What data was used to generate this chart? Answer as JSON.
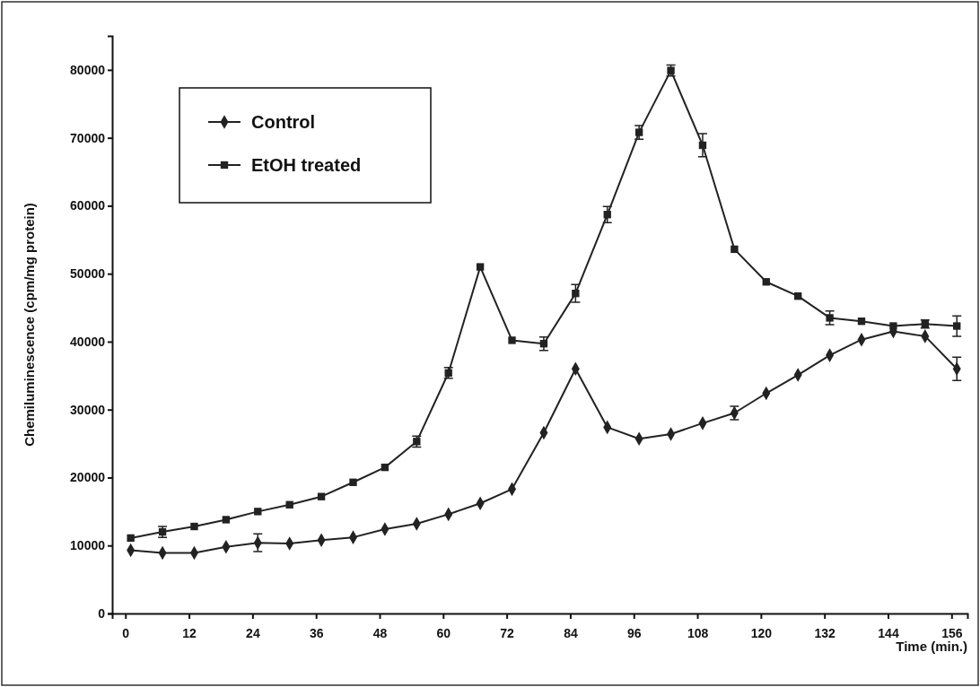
{
  "chart_data": {
    "type": "line",
    "xlabel": "Time (min.)",
    "ylabel": "Chemiluminescence (cpm/mg protein)",
    "x": [
      1,
      7,
      13,
      19,
      25,
      31,
      37,
      43,
      49,
      55,
      61,
      67,
      73,
      79,
      85,
      91,
      97,
      103,
      109,
      115,
      121,
      127,
      133,
      139,
      145,
      151,
      157
    ],
    "xlim": [
      -2.5,
      159
    ],
    "xticks": [
      0,
      12,
      24,
      36,
      48,
      60,
      72,
      84,
      96,
      108,
      120,
      132,
      144,
      156
    ],
    "ylim": [
      0,
      85000
    ],
    "yticks": [
      0,
      10000,
      20000,
      30000,
      40000,
      50000,
      60000,
      70000,
      80000
    ],
    "legend": "top left",
    "line_style": "solid",
    "series": [
      {
        "name": "Control",
        "color": "#222222",
        "marker": "diamond",
        "values": [
          9300,
          8900,
          8900,
          9800,
          10400,
          10300,
          10800,
          11200,
          12400,
          13200,
          14600,
          16200,
          18300,
          26600,
          36000,
          27400,
          25700,
          26400,
          28000,
          29500,
          32400,
          35100,
          38000,
          40300,
          41500,
          40800,
          36000
        ],
        "errors": [
          null,
          null,
          null,
          null,
          1300,
          null,
          null,
          null,
          null,
          null,
          null,
          null,
          null,
          null,
          null,
          null,
          null,
          null,
          null,
          1000,
          null,
          null,
          null,
          null,
          null,
          null,
          1700
        ]
      },
      {
        "name": "EtOH treated",
        "color": "#222222",
        "marker": "square",
        "values": [
          11100,
          12000,
          12800,
          13800,
          15000,
          16000,
          17200,
          19300,
          21500,
          25300,
          35400,
          51000,
          40200,
          39700,
          47100,
          58700,
          70800,
          79900,
          68900,
          53600,
          48800,
          46700,
          43500,
          43000,
          42300,
          42600,
          42300
        ],
        "errors": [
          null,
          800,
          null,
          null,
          null,
          null,
          null,
          null,
          null,
          800,
          800,
          null,
          null,
          1000,
          1300,
          1200,
          1000,
          800,
          1700,
          null,
          null,
          null,
          1000,
          null,
          null,
          600,
          1500
        ]
      }
    ]
  }
}
